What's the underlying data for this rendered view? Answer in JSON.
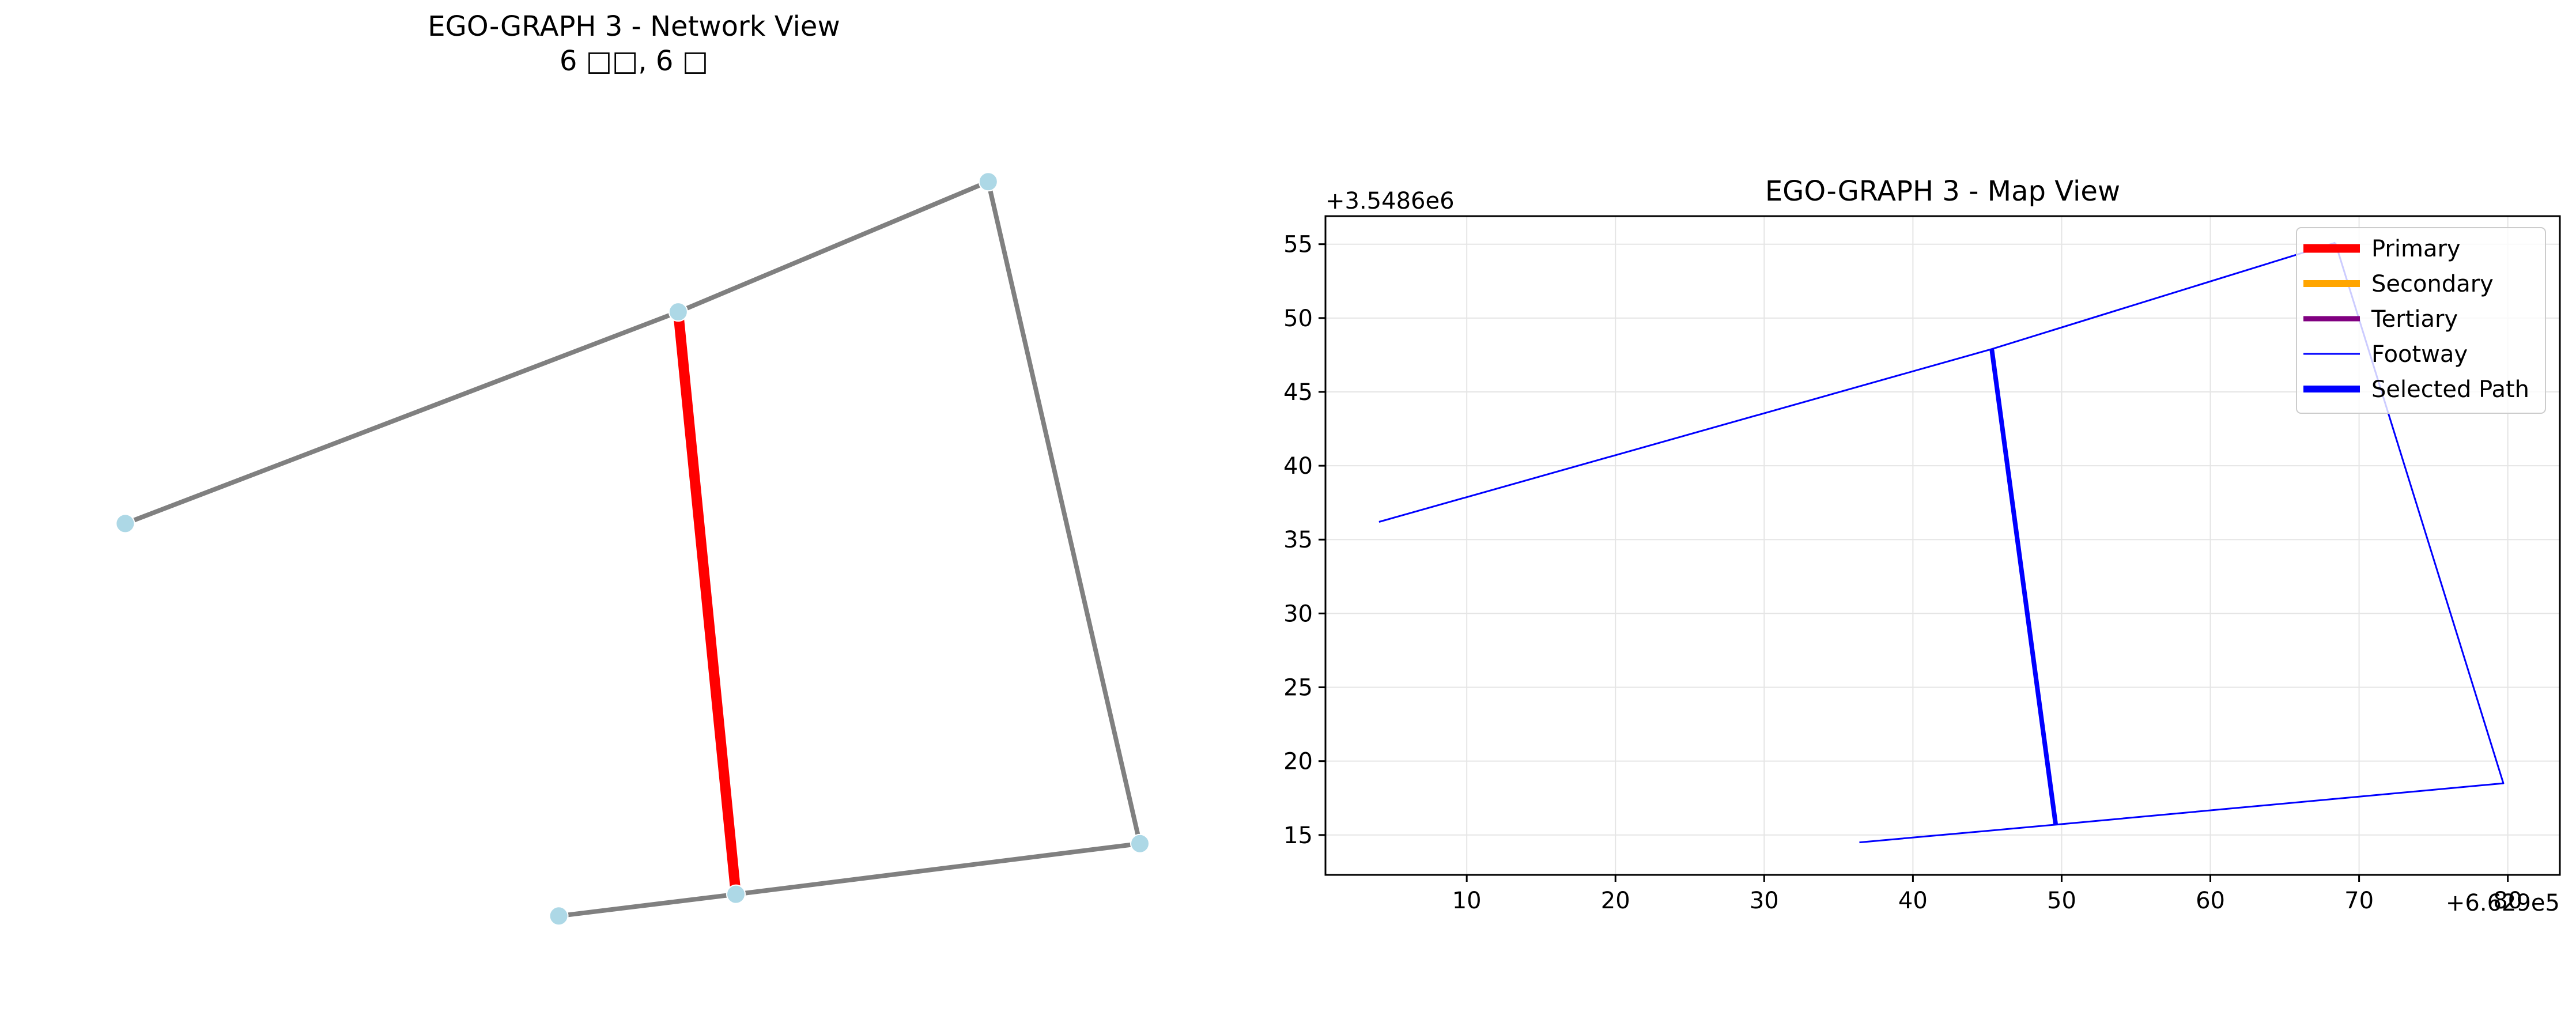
{
  "colors": {
    "primary": "#ff0000",
    "secondary": "#ffa500",
    "tertiary": "#800080",
    "footway": "#0000ff",
    "selected_path": "#0000ff",
    "network_edge": "#808080",
    "network_node": "#add8e6",
    "grid": "#e5e5e5"
  },
  "chart_data": [
    {
      "type": "network",
      "title": "EGO-GRAPH 3 - Network View",
      "subtitle": "6 □□, 6 □",
      "nodes": [
        {
          "x": 4.1,
          "y": 36.2
        },
        {
          "x": 45.3,
          "y": 47.9
        },
        {
          "x": 68.4,
          "y": 55.1
        },
        {
          "x": 79.7,
          "y": 18.5
        },
        {
          "x": 49.6,
          "y": 15.7
        },
        {
          "x": 36.4,
          "y": 14.5
        }
      ],
      "edges": [
        {
          "from": 0,
          "to": 1,
          "highlighted": false
        },
        {
          "from": 1,
          "to": 2,
          "highlighted": false
        },
        {
          "from": 2,
          "to": 3,
          "highlighted": false
        },
        {
          "from": 3,
          "to": 4,
          "highlighted": false
        },
        {
          "from": 4,
          "to": 5,
          "highlighted": false
        },
        {
          "from": 1,
          "to": 4,
          "highlighted": true
        }
      ]
    },
    {
      "type": "line",
      "title": "EGO-GRAPH 3 - Map View",
      "xlabel": "",
      "ylabel": "",
      "x_offset_label": "+6.629e5",
      "y_offset_label": "+3.5486e6",
      "xlim": [
        0.5,
        83.5
      ],
      "ylim": [
        12.3,
        56.9
      ],
      "x_ticks": [
        10,
        20,
        30,
        40,
        50,
        60,
        70,
        80
      ],
      "y_ticks": [
        15,
        20,
        25,
        30,
        35,
        40,
        45,
        50,
        55
      ],
      "grid": true,
      "legend_position": "top-right",
      "legend": [
        {
          "label": "Primary",
          "color_key": "primary",
          "width": 5
        },
        {
          "label": "Secondary",
          "color_key": "secondary",
          "width": 4
        },
        {
          "label": "Tertiary",
          "color_key": "tertiary",
          "width": 3
        },
        {
          "label": "Footway",
          "color_key": "footway",
          "width": 1
        },
        {
          "label": "Selected Path",
          "color_key": "selected_path",
          "width": 4
        }
      ],
      "series": [
        {
          "category": "footway",
          "points": [
            [
              4.1,
              36.2
            ],
            [
              45.3,
              47.9
            ],
            [
              68.4,
              55.1
            ]
          ]
        },
        {
          "category": "footway",
          "points": [
            [
              68.4,
              55.1
            ],
            [
              79.7,
              18.5
            ],
            [
              49.6,
              15.7
            ],
            [
              36.4,
              14.5
            ]
          ]
        },
        {
          "category": "selected_path",
          "points": [
            [
              45.3,
              47.9
            ],
            [
              49.6,
              15.7
            ]
          ]
        }
      ]
    }
  ]
}
